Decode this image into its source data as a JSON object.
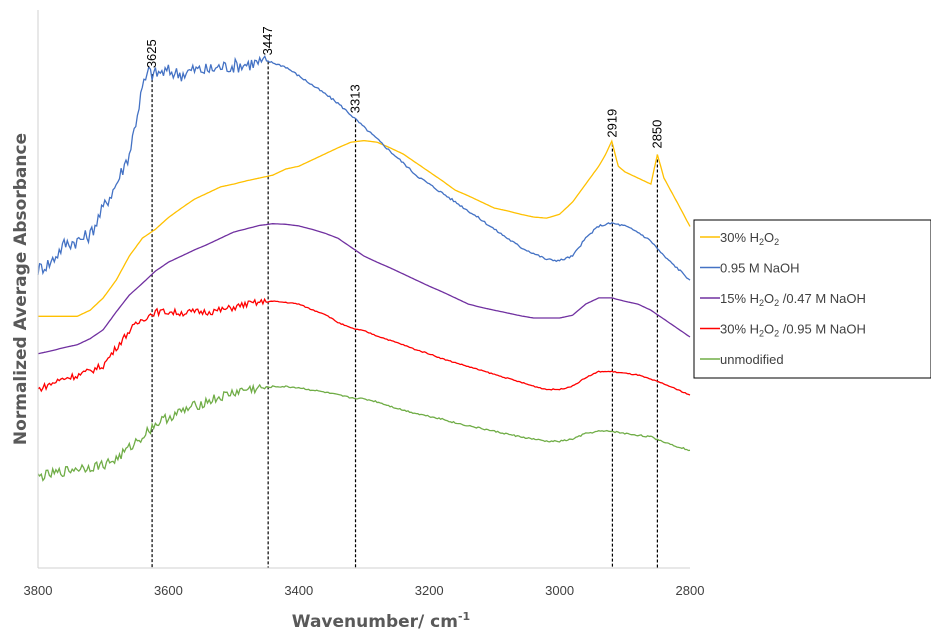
{
  "chart_data": {
    "type": "line",
    "title": "",
    "xlabel": "Wavenumber/ cm",
    "xlabel_superscript": "-1",
    "ylabel": "Normalized Average Absorbance",
    "xlim": [
      3800,
      2800
    ],
    "ylim": [
      0,
      1
    ],
    "x_reversed": true,
    "y_ticks_shown": false,
    "grid": false,
    "legend_position": "right",
    "x_ticks": [
      3800,
      3600,
      3400,
      3200,
      3000,
      2800
    ],
    "peak_lines": [
      3625,
      3447,
      3313,
      2919,
      2850
    ],
    "series": [
      {
        "name": "30% H2O2",
        "legend_parts": [
          [
            "30% H",
            ""
          ],
          [
            "2",
            "sub"
          ],
          [
            "O",
            ""
          ],
          [
            "2",
            "sub"
          ]
        ],
        "color": "#FFC000",
        "noise": 0.0,
        "points": [
          [
            3800,
            0.451
          ],
          [
            3780,
            0.451
          ],
          [
            3760,
            0.451
          ],
          [
            3740,
            0.451
          ],
          [
            3720,
            0.462
          ],
          [
            3700,
            0.484
          ],
          [
            3680,
            0.516
          ],
          [
            3660,
            0.559
          ],
          [
            3640,
            0.591
          ],
          [
            3620,
            0.607
          ],
          [
            3600,
            0.628
          ],
          [
            3580,
            0.645
          ],
          [
            3560,
            0.661
          ],
          [
            3540,
            0.672
          ],
          [
            3520,
            0.683
          ],
          [
            3500,
            0.688
          ],
          [
            3480,
            0.694
          ],
          [
            3460,
            0.699
          ],
          [
            3440,
            0.704
          ],
          [
            3420,
            0.715
          ],
          [
            3400,
            0.72
          ],
          [
            3380,
            0.731
          ],
          [
            3360,
            0.742
          ],
          [
            3340,
            0.753
          ],
          [
            3320,
            0.763
          ],
          [
            3300,
            0.766
          ],
          [
            3280,
            0.763
          ],
          [
            3260,
            0.753
          ],
          [
            3240,
            0.742
          ],
          [
            3220,
            0.726
          ],
          [
            3200,
            0.71
          ],
          [
            3180,
            0.694
          ],
          [
            3160,
            0.677
          ],
          [
            3140,
            0.667
          ],
          [
            3120,
            0.656
          ],
          [
            3100,
            0.645
          ],
          [
            3080,
            0.64
          ],
          [
            3060,
            0.634
          ],
          [
            3040,
            0.629
          ],
          [
            3020,
            0.627
          ],
          [
            3000,
            0.634
          ],
          [
            2980,
            0.656
          ],
          [
            2960,
            0.688
          ],
          [
            2940,
            0.72
          ],
          [
            2930,
            0.74
          ],
          [
            2920,
            0.765
          ],
          [
            2910,
            0.72
          ],
          [
            2900,
            0.71
          ],
          [
            2880,
            0.699
          ],
          [
            2860,
            0.688
          ],
          [
            2850,
            0.741
          ],
          [
            2840,
            0.699
          ],
          [
            2820,
            0.656
          ],
          [
            2800,
            0.612
          ]
        ]
      },
      {
        "name": "0.95 M NaOH",
        "legend_parts": [
          [
            "0.95 M NaOH",
            ""
          ]
        ],
        "color": "#4472C4",
        "noise": 0.013,
        "points": [
          [
            3800,
            0.535
          ],
          [
            3780,
            0.548
          ],
          [
            3760,
            0.58
          ],
          [
            3740,
            0.586
          ],
          [
            3720,
            0.597
          ],
          [
            3700,
            0.645
          ],
          [
            3680,
            0.688
          ],
          [
            3660,
            0.742
          ],
          [
            3650,
            0.8
          ],
          [
            3640,
            0.86
          ],
          [
            3630,
            0.89
          ],
          [
            3625,
            0.885
          ],
          [
            3600,
            0.89
          ],
          [
            3580,
            0.885
          ],
          [
            3560,
            0.893
          ],
          [
            3540,
            0.892
          ],
          [
            3520,
            0.898
          ],
          [
            3500,
            0.9
          ],
          [
            3480,
            0.903
          ],
          [
            3460,
            0.906
          ],
          [
            3447,
            0.908
          ],
          [
            3420,
            0.898
          ],
          [
            3400,
            0.882
          ],
          [
            3380,
            0.866
          ],
          [
            3360,
            0.85
          ],
          [
            3340,
            0.833
          ],
          [
            3320,
            0.812
          ],
          [
            3300,
            0.79
          ],
          [
            3280,
            0.769
          ],
          [
            3260,
            0.747
          ],
          [
            3240,
            0.726
          ],
          [
            3220,
            0.704
          ],
          [
            3200,
            0.688
          ],
          [
            3180,
            0.672
          ],
          [
            3160,
            0.656
          ],
          [
            3140,
            0.64
          ],
          [
            3120,
            0.624
          ],
          [
            3100,
            0.607
          ],
          [
            3080,
            0.591
          ],
          [
            3060,
            0.575
          ],
          [
            3040,
            0.564
          ],
          [
            3020,
            0.553
          ],
          [
            3000,
            0.551
          ],
          [
            2980,
            0.559
          ],
          [
            2960,
            0.591
          ],
          [
            2940,
            0.613
          ],
          [
            2920,
            0.618
          ],
          [
            2900,
            0.613
          ],
          [
            2880,
            0.602
          ],
          [
            2860,
            0.586
          ],
          [
            2840,
            0.559
          ],
          [
            2820,
            0.538
          ],
          [
            2800,
            0.516
          ]
        ]
      },
      {
        "name": "15% H2O2 /0.47 M NaOH",
        "legend_parts": [
          [
            "15% H",
            ""
          ],
          [
            "2",
            "sub"
          ],
          [
            "O",
            ""
          ],
          [
            "2",
            "sub"
          ],
          [
            " /0.47 M NaOH",
            ""
          ]
        ],
        "color": "#7030A0",
        "noise": 0.0,
        "points": [
          [
            3800,
            0.384
          ],
          [
            3780,
            0.389
          ],
          [
            3760,
            0.395
          ],
          [
            3740,
            0.4
          ],
          [
            3720,
            0.411
          ],
          [
            3700,
            0.427
          ],
          [
            3680,
            0.459
          ],
          [
            3660,
            0.489
          ],
          [
            3640,
            0.51
          ],
          [
            3620,
            0.532
          ],
          [
            3600,
            0.548
          ],
          [
            3580,
            0.559
          ],
          [
            3560,
            0.57
          ],
          [
            3540,
            0.58
          ],
          [
            3520,
            0.591
          ],
          [
            3500,
            0.602
          ],
          [
            3480,
            0.608
          ],
          [
            3460,
            0.614
          ],
          [
            3440,
            0.617
          ],
          [
            3420,
            0.616
          ],
          [
            3400,
            0.613
          ],
          [
            3380,
            0.607
          ],
          [
            3360,
            0.6
          ],
          [
            3340,
            0.591
          ],
          [
            3320,
            0.575
          ],
          [
            3300,
            0.559
          ],
          [
            3280,
            0.548
          ],
          [
            3260,
            0.538
          ],
          [
            3240,
            0.527
          ],
          [
            3220,
            0.516
          ],
          [
            3200,
            0.505
          ],
          [
            3180,
            0.495
          ],
          [
            3160,
            0.484
          ],
          [
            3140,
            0.473
          ],
          [
            3120,
            0.467
          ],
          [
            3100,
            0.462
          ],
          [
            3080,
            0.457
          ],
          [
            3060,
            0.452
          ],
          [
            3040,
            0.448
          ],
          [
            3020,
            0.448
          ],
          [
            3000,
            0.448
          ],
          [
            2980,
            0.453
          ],
          [
            2960,
            0.473
          ],
          [
            2940,
            0.484
          ],
          [
            2920,
            0.484
          ],
          [
            2900,
            0.478
          ],
          [
            2880,
            0.473
          ],
          [
            2860,
            0.462
          ],
          [
            2840,
            0.446
          ],
          [
            2820,
            0.43
          ],
          [
            2800,
            0.414
          ]
        ]
      },
      {
        "name": "30% H2O2 /0.95 M NaOH",
        "legend_parts": [
          [
            "30% H",
            ""
          ],
          [
            "2",
            "sub"
          ],
          [
            "O",
            ""
          ],
          [
            "2",
            "sub"
          ],
          [
            " /0.95 M NaOH",
            ""
          ]
        ],
        "color": "#FF0000",
        "noise": 0.006,
        "points": [
          [
            3800,
            0.32
          ],
          [
            3780,
            0.33
          ],
          [
            3760,
            0.34
          ],
          [
            3740,
            0.345
          ],
          [
            3720,
            0.353
          ],
          [
            3700,
            0.363
          ],
          [
            3680,
            0.395
          ],
          [
            3660,
            0.425
          ],
          [
            3640,
            0.446
          ],
          [
            3620,
            0.459
          ],
          [
            3600,
            0.459
          ],
          [
            3580,
            0.457
          ],
          [
            3560,
            0.459
          ],
          [
            3540,
            0.459
          ],
          [
            3520,
            0.462
          ],
          [
            3500,
            0.467
          ],
          [
            3480,
            0.473
          ],
          [
            3460,
            0.476
          ],
          [
            3440,
            0.478
          ],
          [
            3420,
            0.476
          ],
          [
            3400,
            0.473
          ],
          [
            3380,
            0.463
          ],
          [
            3360,
            0.455
          ],
          [
            3340,
            0.44
          ],
          [
            3320,
            0.43
          ],
          [
            3300,
            0.425
          ],
          [
            3280,
            0.416
          ],
          [
            3260,
            0.408
          ],
          [
            3240,
            0.4
          ],
          [
            3220,
            0.391
          ],
          [
            3200,
            0.384
          ],
          [
            3180,
            0.375
          ],
          [
            3160,
            0.368
          ],
          [
            3140,
            0.361
          ],
          [
            3120,
            0.354
          ],
          [
            3100,
            0.347
          ],
          [
            3080,
            0.34
          ],
          [
            3060,
            0.333
          ],
          [
            3040,
            0.326
          ],
          [
            3020,
            0.32
          ],
          [
            3000,
            0.32
          ],
          [
            2980,
            0.326
          ],
          [
            2960,
            0.341
          ],
          [
            2940,
            0.352
          ],
          [
            2920,
            0.352
          ],
          [
            2900,
            0.349
          ],
          [
            2880,
            0.346
          ],
          [
            2860,
            0.338
          ],
          [
            2840,
            0.33
          ],
          [
            2820,
            0.32
          ],
          [
            2800,
            0.31
          ]
        ]
      },
      {
        "name": "unmodified",
        "legend_parts": [
          [
            "unmodified",
            ""
          ]
        ],
        "color": "#70AD47",
        "noise": 0.009,
        "points": [
          [
            3800,
            0.163
          ],
          [
            3780,
            0.168
          ],
          [
            3760,
            0.173
          ],
          [
            3740,
            0.179
          ],
          [
            3720,
            0.181
          ],
          [
            3700,
            0.185
          ],
          [
            3680,
            0.195
          ],
          [
            3660,
            0.215
          ],
          [
            3640,
            0.236
          ],
          [
            3620,
            0.258
          ],
          [
            3600,
            0.27
          ],
          [
            3580,
            0.28
          ],
          [
            3560,
            0.29
          ],
          [
            3540,
            0.299
          ],
          [
            3520,
            0.306
          ],
          [
            3500,
            0.314
          ],
          [
            3480,
            0.32
          ],
          [
            3460,
            0.322
          ],
          [
            3440,
            0.325
          ],
          [
            3420,
            0.325
          ],
          [
            3400,
            0.323
          ],
          [
            3380,
            0.319
          ],
          [
            3360,
            0.315
          ],
          [
            3340,
            0.31
          ],
          [
            3320,
            0.305
          ],
          [
            3300,
            0.303
          ],
          [
            3280,
            0.298
          ],
          [
            3260,
            0.29
          ],
          [
            3240,
            0.283
          ],
          [
            3220,
            0.277
          ],
          [
            3200,
            0.272
          ],
          [
            3180,
            0.267
          ],
          [
            3160,
            0.26
          ],
          [
            3140,
            0.255
          ],
          [
            3120,
            0.25
          ],
          [
            3100,
            0.245
          ],
          [
            3080,
            0.24
          ],
          [
            3060,
            0.235
          ],
          [
            3040,
            0.231
          ],
          [
            3020,
            0.227
          ],
          [
            3000,
            0.227
          ],
          [
            2980,
            0.231
          ],
          [
            2960,
            0.241
          ],
          [
            2940,
            0.245
          ],
          [
            2920,
            0.245
          ],
          [
            2900,
            0.241
          ],
          [
            2880,
            0.238
          ],
          [
            2860,
            0.235
          ],
          [
            2840,
            0.226
          ],
          [
            2820,
            0.218
          ],
          [
            2800,
            0.211
          ]
        ]
      }
    ]
  }
}
